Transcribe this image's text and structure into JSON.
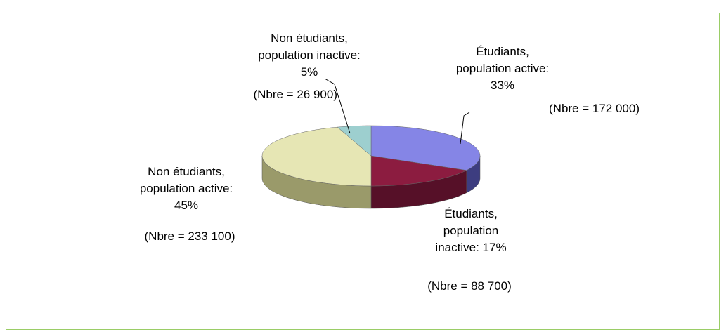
{
  "chart_data": {
    "type": "pie3d",
    "categories": [
      "Étudiants,\npopulation active:",
      "Étudiants,\npopulation\ninactive:",
      "Non étudiants,\npopulation active:",
      "Non étudiants,\npopulation inactive:"
    ],
    "values": [
      33,
      17,
      45,
      5
    ],
    "value_labels": [
      "33%",
      "17%",
      "45%",
      "5%"
    ],
    "annotations": [
      "(Nbre = 172 000)",
      "(Nbre = 88 700)",
      "(Nbre = 233 100)",
      "(Nbre = 26 900)"
    ],
    "colors": [
      "#8585e6",
      "#8c1c40",
      "#e6e6b4",
      "#9dcfcf"
    ],
    "side_colors": [
      "#3d3d80",
      "#561028",
      "#9a9a6a",
      "#5a8a8a"
    ]
  }
}
